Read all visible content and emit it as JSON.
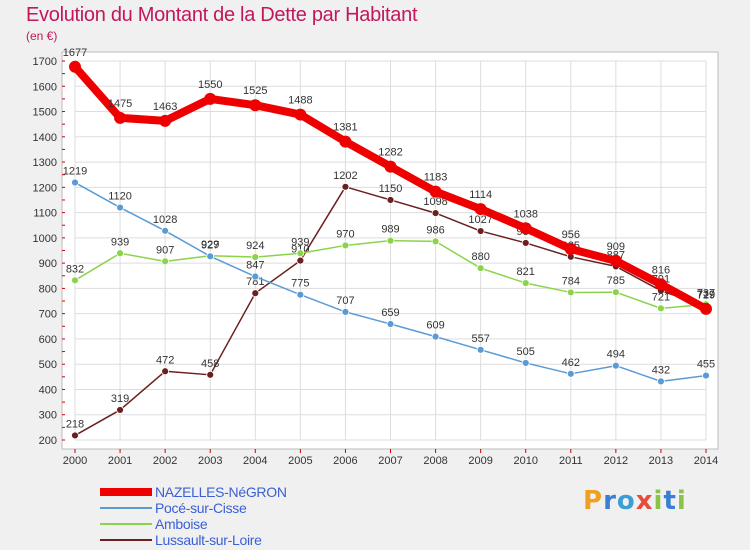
{
  "chart_data": {
    "type": "line",
    "title": "Evolution du Montant de la Dette par Habitant",
    "unit_label": "(en €)",
    "categories": [
      "2000",
      "2001",
      "2002",
      "2003",
      "2004",
      "2005",
      "2006",
      "2007",
      "2008",
      "2009",
      "2010",
      "2011",
      "2012",
      "2013",
      "2014"
    ],
    "ylim": [
      200,
      1700
    ],
    "yticks": [
      200,
      300,
      400,
      500,
      600,
      700,
      800,
      900,
      1000,
      1100,
      1200,
      1300,
      1400,
      1500,
      1600,
      1700
    ],
    "grid": true,
    "series": [
      {
        "name": "Lussault-sur-Loire",
        "color": "#6b1f1f",
        "values": [
          218,
          319,
          472,
          458,
          781,
          910,
          1202,
          1150,
          1098,
          1027,
          980,
          925,
          887,
          791,
          729
        ]
      },
      {
        "name": "Amboise",
        "color": "#8bd34a",
        "values": [
          832,
          939,
          907,
          929,
          924,
          939,
          970,
          989,
          986,
          880,
          821,
          784,
          785,
          721,
          737
        ]
      },
      {
        "name": "Pocé-sur-Cisse",
        "color": "#5b9bd5",
        "values": [
          1219,
          1120,
          1028,
          927,
          847,
          775,
          707,
          659,
          609,
          557,
          505,
          462,
          494,
          432,
          455
        ]
      },
      {
        "name": "NAZELLES-NéGRON",
        "color": "#ee0000",
        "values": [
          1677,
          1475,
          1463,
          1550,
          1525,
          1488,
          1381,
          1282,
          1183,
          1114,
          1038,
          956,
          909,
          816,
          719
        ]
      }
    ]
  },
  "legend": {
    "items": [
      {
        "label": "NAZELLES-NéGRON",
        "color": "#ee0000"
      },
      {
        "label": "Pocé-sur-Cisse",
        "color": "#5b9bd5"
      },
      {
        "label": "Amboise",
        "color": "#8bd34a"
      },
      {
        "label": "Lussault-sur-Loire",
        "color": "#6b1f1f"
      }
    ]
  },
  "brand": {
    "text": "Proxiti"
  }
}
